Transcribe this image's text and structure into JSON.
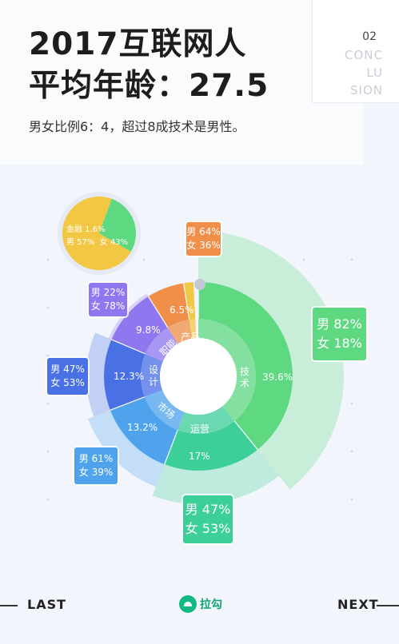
{
  "page": {
    "title_line1": "2017互联网人",
    "title_line2": "平均年龄：27.5",
    "subtitle": "男女比例6：4，超过8成技术是男性。",
    "badge_number": "02",
    "badge_word_lines": [
      "CONC",
      "LU",
      "SION"
    ],
    "nav_prev": "LAST",
    "nav_next": "NEXT",
    "brand_name": "拉勾"
  },
  "segments": [
    {
      "key": "tech",
      "category": "技术",
      "percent": "39.6%",
      "male": "男 82%",
      "female": "女 18%",
      "color": "#5fd882"
    },
    {
      "key": "ops",
      "category": "运营",
      "percent": "17%",
      "male": "男 47%",
      "female": "女 53%",
      "color": "#3ccf98"
    },
    {
      "key": "market",
      "category": "市场",
      "percent": "13.2%",
      "male": "男 61%",
      "female": "女 39%",
      "color": "#4fa3ec"
    },
    {
      "key": "design",
      "category": "设计",
      "percent": "12.3%",
      "male": "男 47%",
      "female": "女 53%",
      "color": "#4a70e6"
    },
    {
      "key": "function",
      "category": "职能",
      "percent": "9.8%",
      "male": "男 22%",
      "female": "女 78%",
      "color": "#8f77f0"
    },
    {
      "key": "product",
      "category": "产品",
      "percent": "6.5%",
      "male": "男 64%",
      "female": "女 36%",
      "color": "#f08f4a"
    },
    {
      "key": "finance",
      "category": "金融",
      "percent": "1.6%",
      "male": "男 57%",
      "female": "女 43%",
      "color": "#f2c744"
    }
  ],
  "finance_label": "金融 1.6%",
  "finance_split": "男 57%  女 43%"
}
